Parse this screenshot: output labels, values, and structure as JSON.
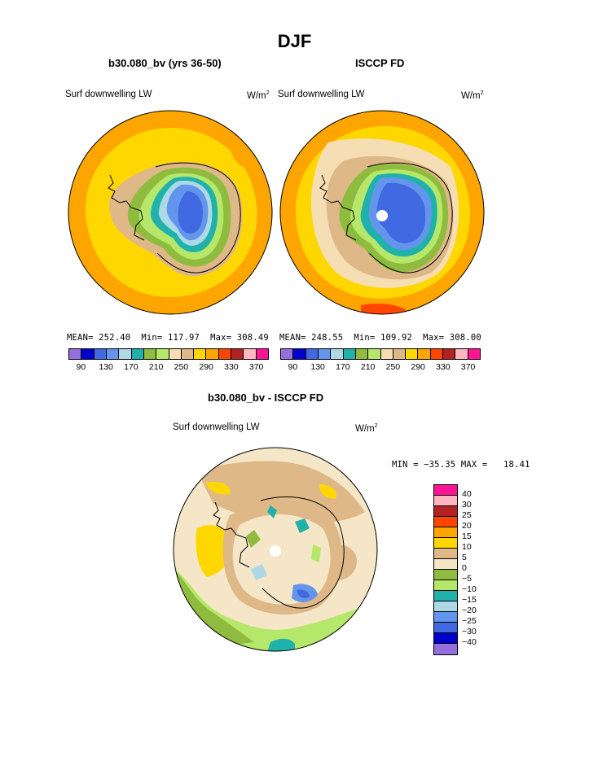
{
  "page_title": "DJF",
  "panels": [
    {
      "title": "b30.080_bv (yrs 36-50)",
      "variable": "Surf downwelling LW",
      "units_base": "W/m",
      "units_exp": "2",
      "mean_label": "MEAN=",
      "mean": "252.40",
      "min_label": "Min=",
      "min": "117.97",
      "max_label": "Max=",
      "max": "308.49"
    },
    {
      "title": "ISCCP FD",
      "variable": "Surf downwelling LW",
      "units_base": "W/m",
      "units_exp": "2",
      "mean_label": "MEAN=",
      "mean": "248.55",
      "min_label": "Min=",
      "min": "109.92",
      "max_label": "Max=",
      "max": "308.00"
    }
  ],
  "abs_colorbar": {
    "colors": [
      "#9370DB",
      "#0000CD",
      "#4169E1",
      "#6495ED",
      "#ADD8E6",
      "#20B2AA",
      "#8FBC3F",
      "#B5E86A",
      "#F5DEB3",
      "#DEB887",
      "#FFD700",
      "#FFA500",
      "#FF4500",
      "#B22222",
      "#FFB6C1",
      "#FF1493"
    ],
    "ticks": [
      "90",
      "130",
      "170",
      "210",
      "250",
      "290",
      "330",
      "370"
    ]
  },
  "diff": {
    "title": "b30.080_bv - ISCCP FD",
    "variable": "Surf downwelling LW",
    "units_base": "W/m",
    "units_exp": "2",
    "min_label": "MIN =",
    "min": "−35.35",
    "max_label": "MAX =",
    "max": "18.41",
    "colorbar": {
      "colors_top_to_bottom": [
        "#FF1493",
        "#FFB6C1",
        "#B22222",
        "#FF4500",
        "#FFA500",
        "#FFD700",
        "#DEB887",
        "#F5E6C8",
        "#8FBC3F",
        "#B5E86A",
        "#20B2AA",
        "#ADD8E6",
        "#6495ED",
        "#4169E1",
        "#0000CD",
        "#9370DB"
      ],
      "ticks_top_to_bottom": [
        "40",
        "30",
        "25",
        "20",
        "15",
        "10",
        "5",
        "0",
        "−5",
        "−10",
        "−15",
        "−20",
        "−25",
        "−30",
        "−40"
      ]
    }
  }
}
